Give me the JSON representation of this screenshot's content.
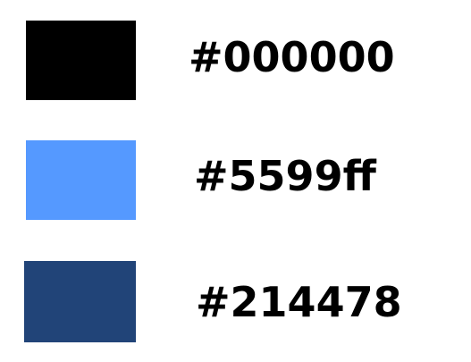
{
  "swatches": [
    {
      "color": "#000000",
      "label": "#000000"
    },
    {
      "color": "#5599ff",
      "label": "#5599ff"
    },
    {
      "color": "#214478",
      "label": "#214478"
    }
  ]
}
